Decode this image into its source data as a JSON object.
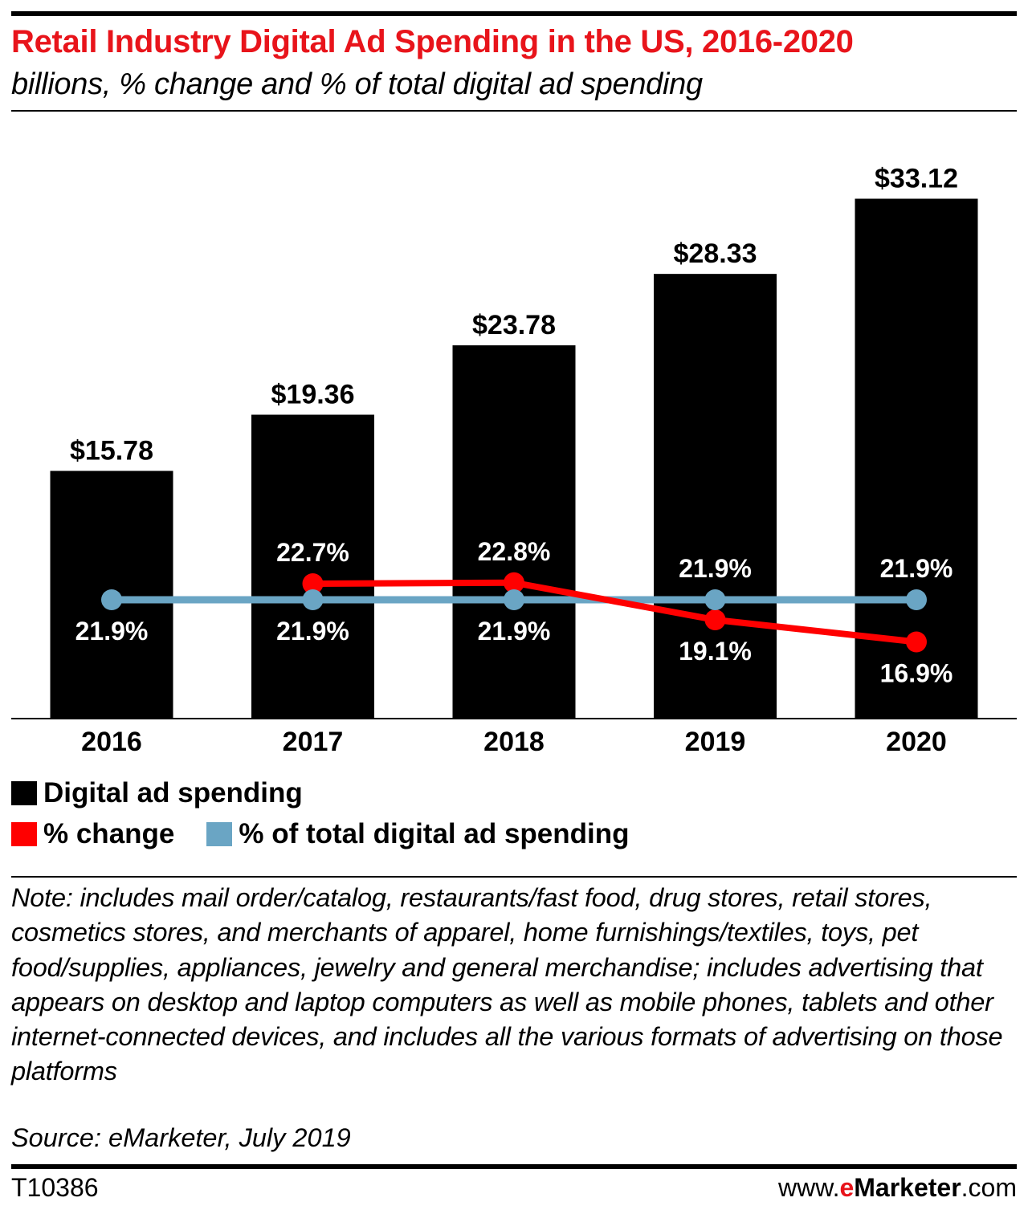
{
  "header": {
    "title": "Retail Industry Digital Ad Spending in the US, 2016-2020",
    "subtitle": "billions, % change and % of total digital ad spending"
  },
  "colors": {
    "bars": "#000000",
    "pct_change": "#ff0000",
    "pct_total": "#6aa5c4",
    "title": "#e8141b"
  },
  "chart_data": {
    "type": "bar",
    "title": "Retail Industry Digital Ad Spending in the US, 2016-2020",
    "subtitle": "billions, % change and % of total digital ad spending",
    "categories": [
      "2016",
      "2017",
      "2018",
      "2019",
      "2020"
    ],
    "ylim": [
      0,
      36
    ],
    "series": [
      {
        "name": "Digital ad spending",
        "type": "bar",
        "values": [
          15.78,
          19.36,
          23.78,
          28.33,
          33.12
        ],
        "labels": [
          "$15.78",
          "$19.36",
          "$23.78",
          "$28.33",
          "$33.12"
        ]
      },
      {
        "name": "% change",
        "type": "line",
        "values": [
          null,
          22.7,
          22.8,
          19.1,
          16.9
        ],
        "labels": [
          "",
          "22.7%",
          "22.8%",
          "19.1%",
          "16.9%"
        ]
      },
      {
        "name": "% of total digital ad spending",
        "type": "line",
        "values": [
          21.9,
          21.9,
          21.9,
          21.9,
          21.9
        ],
        "labels": [
          "21.9%",
          "21.9%",
          "21.9%",
          "21.9%",
          "21.9%"
        ]
      }
    ],
    "legend": [
      "Digital ad spending",
      "% change",
      "% of total digital ad spending"
    ],
    "legend_position": "bottom",
    "grid": false
  },
  "footer": {
    "note": "Note: includes mail order/catalog, restaurants/fast food, drug stores, retail stores, cosmetics stores, and merchants of apparel, home furnishings/textiles, toys, pet food/supplies, appliances, jewelry and general merchandise; includes advertising that appears on desktop and laptop computers as well as mobile phones, tablets and other internet-connected devices, and includes all the various formats of advertising on those platforms",
    "source": "Source: eMarketer, July 2019",
    "chart_id": "T10386",
    "brand_prefix": "www.",
    "brand_e": "e",
    "brand_name": "Marketer",
    "brand_suffix": ".com"
  }
}
